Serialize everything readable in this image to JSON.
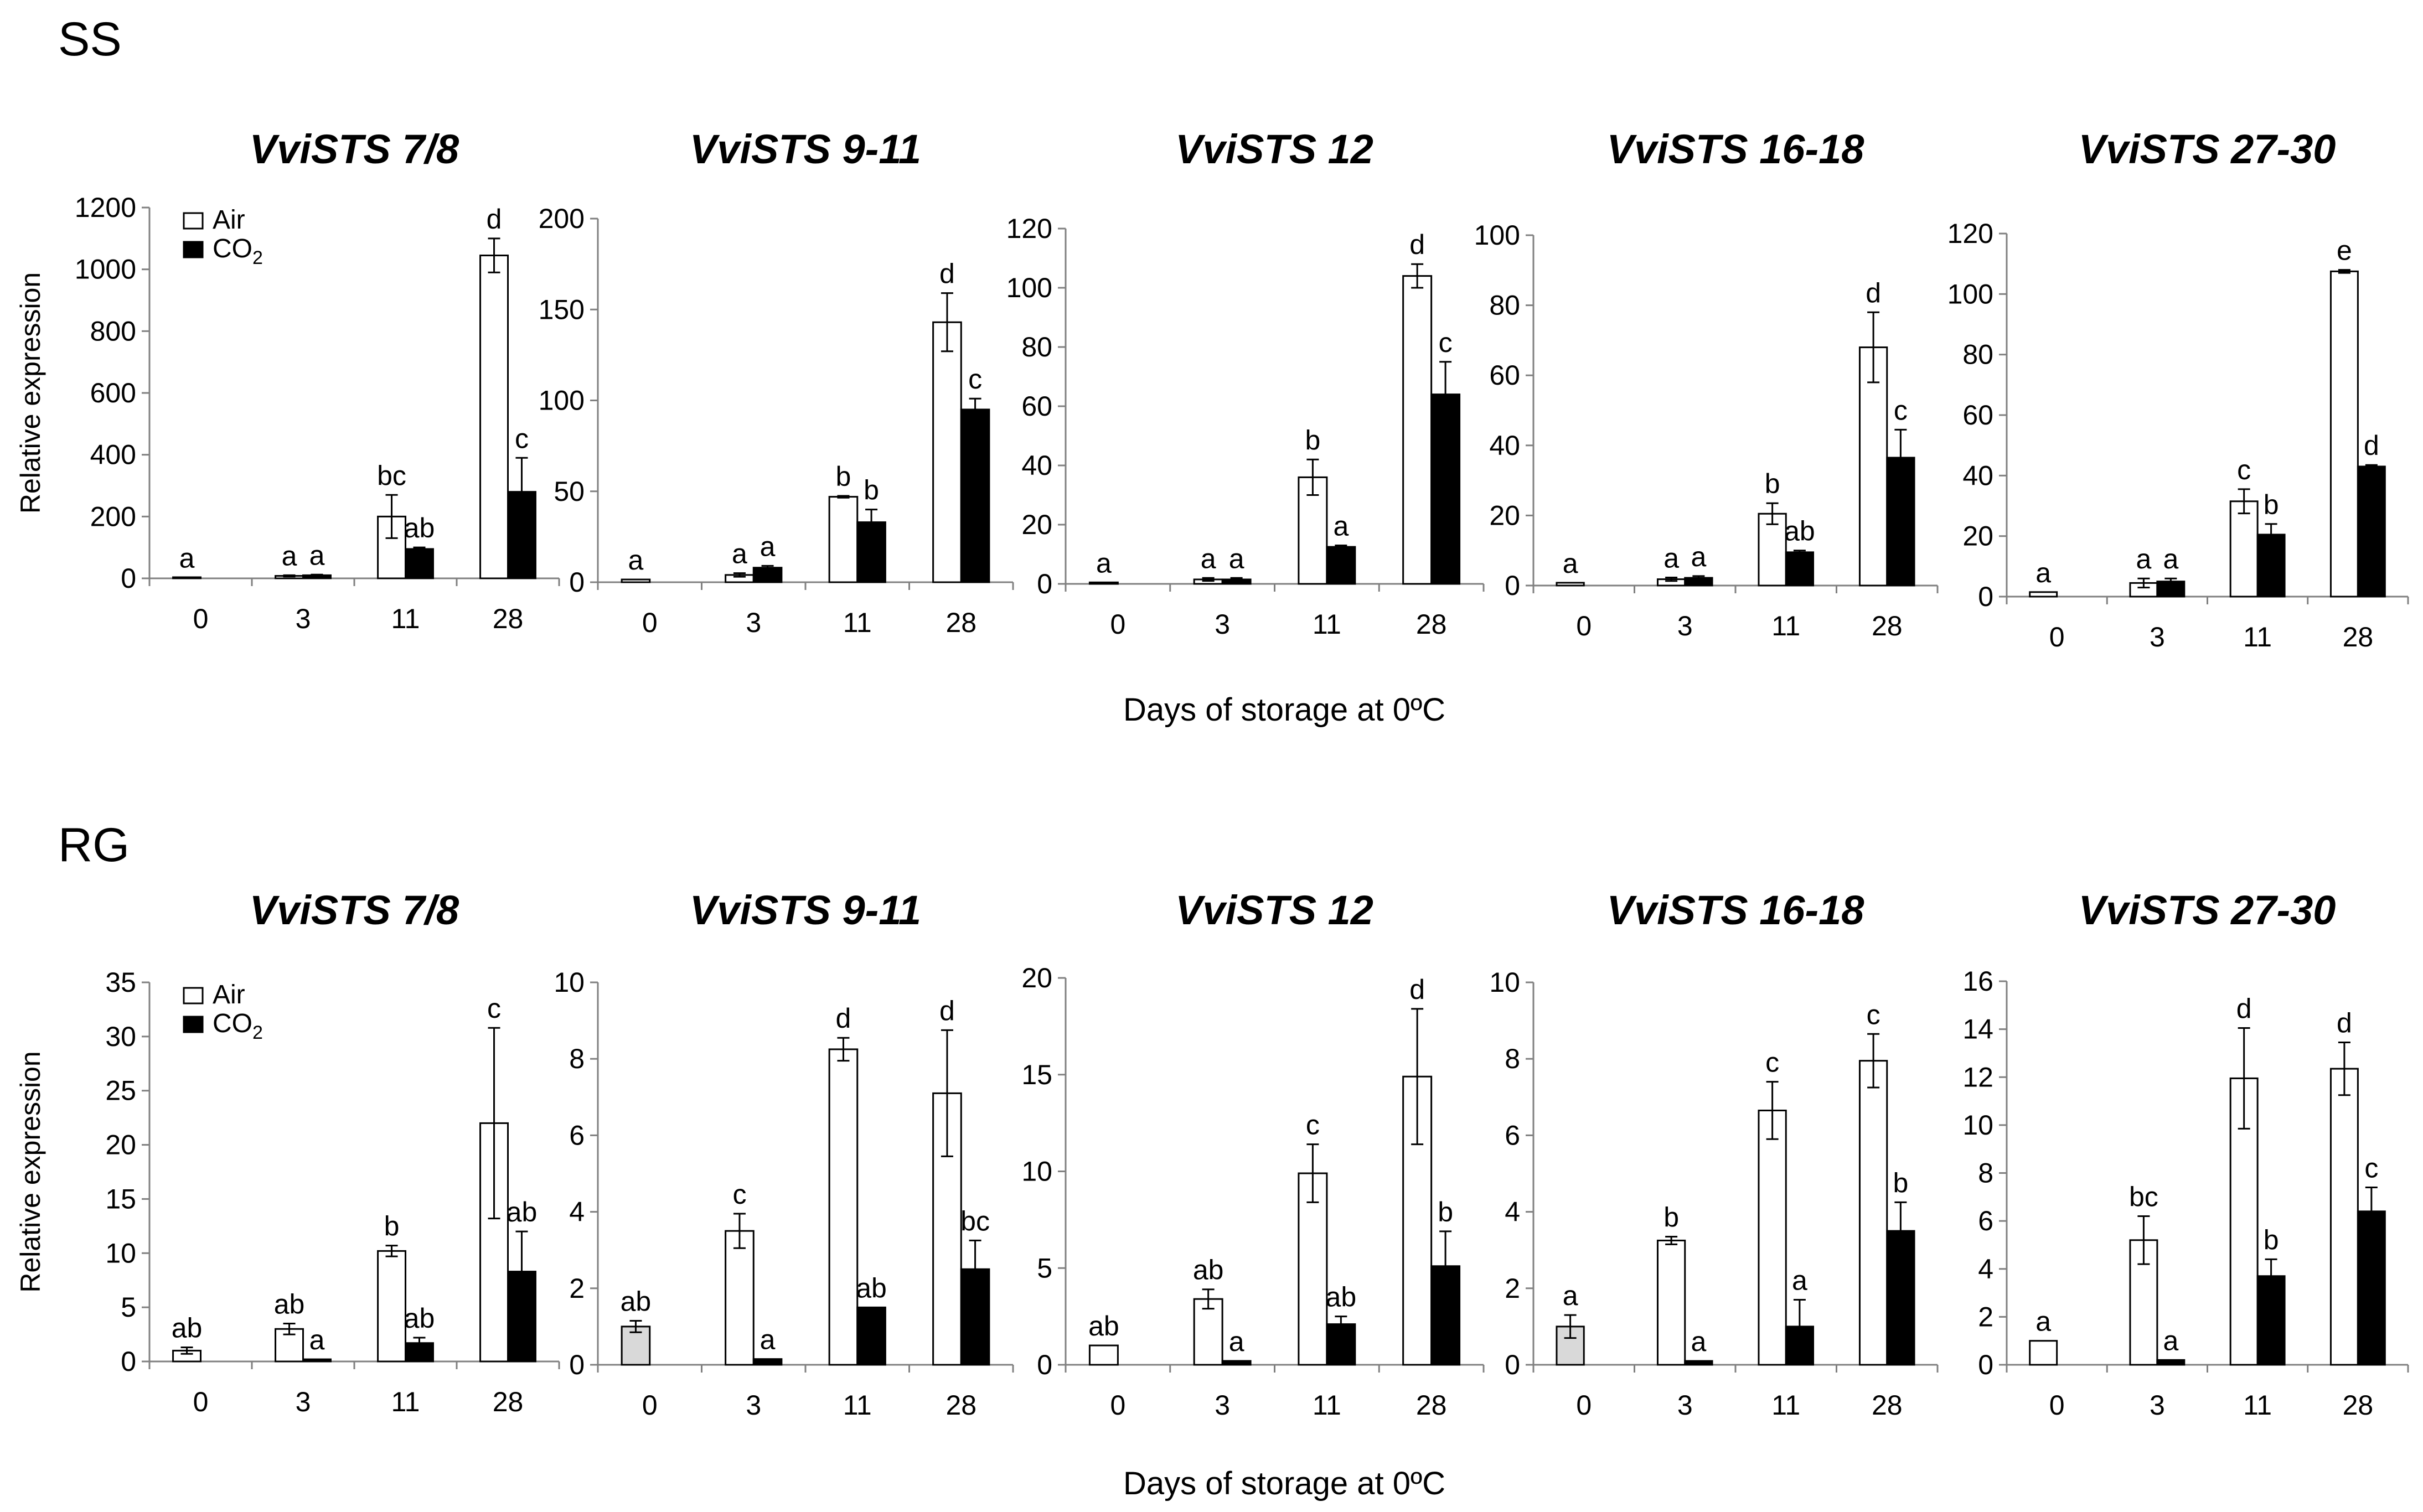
{
  "figure": {
    "xlabel": "Days of storage at 0ºC",
    "ylabel": "Relative expression",
    "legend": [
      {
        "label": "Air",
        "fill": "#ffffff"
      },
      {
        "label": "CO",
        "sub": "2",
        "fill": "#000000"
      }
    ],
    "colors": {
      "air": "#ffffff",
      "co2": "#000000",
      "baseline": "#d9d9d9",
      "axis": "#808080"
    }
  },
  "chart_data": [
    {
      "panel": "SS",
      "type": "bar",
      "title": "VviSTS 7/8",
      "ylim": [
        0,
        1200
      ],
      "yticks": [
        0,
        200,
        400,
        600,
        800,
        1000,
        1200
      ],
      "categories": [
        "0",
        "3",
        "11",
        "28"
      ],
      "series": [
        {
          "name": "Air",
          "values": [
            3,
            8,
            200,
            1045
          ],
          "errors": [
            0,
            2,
            70,
            55
          ],
          "labels": [
            "a",
            "a",
            "bc",
            "d"
          ]
        },
        {
          "name": "CO2",
          "values": [
            null,
            10,
            95,
            280
          ],
          "errors": [
            null,
            2,
            5,
            110
          ],
          "labels": [
            null,
            "a",
            "ab",
            "c"
          ]
        }
      ]
    },
    {
      "panel": "SS",
      "type": "bar",
      "title": "VviSTS 9-11",
      "ylim": [
        0,
        200
      ],
      "yticks": [
        0,
        50,
        100,
        150,
        200
      ],
      "categories": [
        "0",
        "3",
        "11",
        "28"
      ],
      "series": [
        {
          "name": "Air",
          "values": [
            1.5,
            4,
            47,
            143
          ],
          "errors": [
            0,
            1,
            0.5,
            16
          ],
          "labels": [
            "a",
            "a",
            "b",
            "d"
          ]
        },
        {
          "name": "CO2",
          "values": [
            null,
            8,
            33,
            95
          ],
          "errors": [
            null,
            1,
            7,
            6
          ],
          "labels": [
            null,
            "a",
            "b",
            "c"
          ]
        }
      ]
    },
    {
      "panel": "SS",
      "type": "bar",
      "title": "VviSTS 12",
      "ylim": [
        0,
        120
      ],
      "yticks": [
        0,
        20,
        40,
        60,
        80,
        100,
        120
      ],
      "categories": [
        "0",
        "3",
        "11",
        "28"
      ],
      "series": [
        {
          "name": "Air",
          "values": [
            0.5,
            1.5,
            36,
            104
          ],
          "errors": [
            0,
            0.5,
            6,
            4
          ],
          "labels": [
            "a",
            "a",
            "b",
            "d"
          ]
        },
        {
          "name": "CO2",
          "values": [
            null,
            1.5,
            12.5,
            64
          ],
          "errors": [
            null,
            0.5,
            0.5,
            11
          ],
          "labels": [
            null,
            "a",
            "a",
            "c"
          ]
        }
      ]
    },
    {
      "panel": "SS",
      "type": "bar",
      "title": "VviSTS 16-18",
      "ylim": [
        0,
        100
      ],
      "yticks": [
        0,
        20,
        40,
        60,
        80,
        100
      ],
      "categories": [
        "0",
        "3",
        "11",
        "28"
      ],
      "series": [
        {
          "name": "Air",
          "values": [
            0.8,
            1.8,
            20.5,
            68
          ],
          "errors": [
            0,
            0.5,
            3,
            10
          ],
          "labels": [
            "a",
            "a",
            "b",
            "d"
          ]
        },
        {
          "name": "CO2",
          "values": [
            null,
            2.2,
            9.5,
            36.5
          ],
          "errors": [
            null,
            0.5,
            0.5,
            8
          ],
          "labels": [
            null,
            "a",
            "ab",
            "c"
          ]
        }
      ]
    },
    {
      "panel": "SS",
      "type": "bar",
      "title": "VviSTS 27-30",
      "ylim": [
        0,
        120
      ],
      "yticks": [
        0,
        20,
        40,
        60,
        80,
        100,
        120
      ],
      "categories": [
        "0",
        "3",
        "11",
        "28"
      ],
      "series": [
        {
          "name": "Air",
          "values": [
            1.5,
            4.5,
            31.5,
            107.5
          ],
          "errors": [
            0,
            1.5,
            4,
            0.5
          ],
          "labels": [
            "a",
            "a",
            "c",
            "e"
          ]
        },
        {
          "name": "CO2",
          "values": [
            null,
            5,
            20.5,
            43
          ],
          "errors": [
            null,
            1,
            3.5,
            0.5
          ],
          "labels": [
            null,
            "a",
            "b",
            "d"
          ]
        }
      ]
    },
    {
      "panel": "RG",
      "type": "bar",
      "title": "VviSTS 7/8",
      "ylim": [
        0,
        35
      ],
      "yticks": [
        0,
        5,
        10,
        15,
        20,
        25,
        30,
        35
      ],
      "categories": [
        "0",
        "3",
        "11",
        "28"
      ],
      "series": [
        {
          "name": "Air",
          "values": [
            1,
            3,
            10.2,
            22
          ],
          "errors": [
            0.3,
            0.5,
            0.5,
            8.8
          ],
          "labels": [
            "ab",
            "ab",
            "b",
            "c"
          ]
        },
        {
          "name": "CO2",
          "values": [
            null,
            0.2,
            1.7,
            8.3
          ],
          "errors": [
            null,
            0,
            0.5,
            3.7
          ],
          "labels": [
            null,
            "a",
            "ab",
            "ab"
          ]
        }
      ]
    },
    {
      "panel": "RG",
      "type": "bar",
      "title": "VviSTS 9-11",
      "ylim": [
        0,
        10
      ],
      "yticks": [
        0,
        2,
        4,
        6,
        8,
        10
      ],
      "categories": [
        "0",
        "3",
        "11",
        "28"
      ],
      "series": [
        {
          "name": "Air",
          "values": [
            1,
            3.5,
            8.25,
            7.1
          ],
          "errors": [
            0.15,
            0.45,
            0.3,
            1.65
          ],
          "labels": [
            "ab",
            "c",
            "d",
            "d"
          ],
          "baseline": true
        },
        {
          "name": "CO2",
          "values": [
            null,
            0.15,
            1.5,
            2.5
          ],
          "errors": [
            null,
            0,
            0,
            0.75
          ],
          "labels": [
            null,
            "a",
            "ab",
            "bc"
          ]
        }
      ]
    },
    {
      "panel": "RG",
      "type": "bar",
      "title": "VviSTS 12",
      "ylim": [
        0,
        20
      ],
      "yticks": [
        0,
        5,
        10,
        15,
        20
      ],
      "categories": [
        "0",
        "3",
        "11",
        "28"
      ],
      "series": [
        {
          "name": "Air",
          "values": [
            1,
            3.4,
            9.9,
            14.9
          ],
          "errors": [
            0,
            0.5,
            1.5,
            3.5
          ],
          "labels": [
            "ab",
            "ab",
            "c",
            "d"
          ]
        },
        {
          "name": "CO2",
          "values": [
            null,
            0.2,
            2.1,
            5.1
          ],
          "errors": [
            null,
            0,
            0.4,
            1.8
          ],
          "labels": [
            null,
            "a",
            "ab",
            "b"
          ]
        }
      ]
    },
    {
      "panel": "RG",
      "type": "bar",
      "title": "VviSTS 16-18",
      "ylim": [
        0,
        10
      ],
      "yticks": [
        0,
        2,
        4,
        6,
        8,
        10
      ],
      "categories": [
        "0",
        "3",
        "11",
        "28"
      ],
      "series": [
        {
          "name": "Air",
          "values": [
            1,
            3.25,
            6.65,
            7.95
          ],
          "errors": [
            0.3,
            0.1,
            0.75,
            0.7
          ],
          "labels": [
            "a",
            "b",
            "c",
            "c"
          ],
          "baseline": true
        },
        {
          "name": "CO2",
          "values": [
            null,
            0.1,
            1,
            3.5
          ],
          "errors": [
            null,
            0,
            0.7,
            0.75
          ],
          "labels": [
            null,
            "a",
            "a",
            "b"
          ]
        }
      ]
    },
    {
      "panel": "RG",
      "type": "bar",
      "title": "VviSTS 27-30",
      "ylim": [
        0,
        16
      ],
      "yticks": [
        0,
        2,
        4,
        6,
        8,
        10,
        12,
        14,
        16
      ],
      "categories": [
        "0",
        "3",
        "11",
        "28"
      ],
      "series": [
        {
          "name": "Air",
          "values": [
            1,
            5.2,
            11.95,
            12.35
          ],
          "errors": [
            0,
            1,
            2.1,
            1.1
          ],
          "labels": [
            "a",
            "bc",
            "d",
            "d"
          ]
        },
        {
          "name": "CO2",
          "values": [
            null,
            0.2,
            3.7,
            6.4
          ],
          "errors": [
            null,
            0,
            0.7,
            1
          ],
          "labels": [
            null,
            "a",
            "b",
            "c"
          ]
        }
      ]
    }
  ]
}
